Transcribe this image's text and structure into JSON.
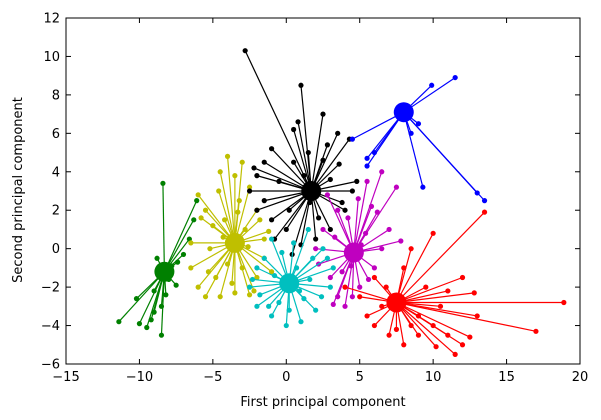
{
  "chart_data": {
    "type": "scatter",
    "title": "",
    "xlabel": "First principal component",
    "ylabel": "Second principal component",
    "xlim": [
      -15,
      20
    ],
    "ylim": [
      -6,
      12
    ],
    "xticks": [
      -15,
      -10,
      -5,
      0,
      5,
      10,
      15,
      20
    ],
    "yticks": [
      -6,
      -4,
      -2,
      0,
      2,
      4,
      6,
      8,
      10,
      12
    ],
    "grid": false,
    "legend": "none",
    "style": "cluster points joined to their centroid",
    "clusters": [
      {
        "color": "#008000",
        "centroid": [
          -8.3,
          -1.2
        ],
        "points": [
          [
            -8.4,
            3.4
          ],
          [
            -6.1,
            2.5
          ],
          [
            -6.3,
            1.5
          ],
          [
            -6.6,
            0.5
          ],
          [
            -7.0,
            -0.3
          ],
          [
            -7.4,
            -0.7
          ],
          [
            -8.0,
            -1.6
          ],
          [
            -8.2,
            -2.4
          ],
          [
            -8.5,
            -3.0
          ],
          [
            -9.0,
            -3.3
          ],
          [
            -9.2,
            -3.7
          ],
          [
            -9.5,
            -4.1
          ],
          [
            -10.0,
            -3.9
          ],
          [
            -8.5,
            -4.5
          ],
          [
            -11.4,
            -3.8
          ],
          [
            -10.2,
            -2.6
          ],
          [
            -9.0,
            -2.2
          ],
          [
            -7.5,
            -1.9
          ],
          [
            -8.8,
            -0.5
          ],
          [
            -7.8,
            -0.9
          ]
        ]
      },
      {
        "color": "#bfbf00",
        "centroid": [
          -3.5,
          0.3
        ],
        "points": [
          [
            -6.0,
            2.8
          ],
          [
            -5.5,
            2.0
          ],
          [
            -4.0,
            4.8
          ],
          [
            -4.5,
            4.0
          ],
          [
            -3.0,
            4.5
          ],
          [
            -2.5,
            3.2
          ],
          [
            -3.5,
            3.8
          ],
          [
            -5.0,
            1.2
          ],
          [
            -6.5,
            0.3
          ],
          [
            -6.5,
            -1.0
          ],
          [
            -6.0,
            -2.0
          ],
          [
            -5.5,
            -2.5
          ],
          [
            -4.5,
            -2.5
          ],
          [
            -3.5,
            -2.3
          ],
          [
            -2.5,
            -2.4
          ],
          [
            -2.0,
            -1.5
          ],
          [
            -1.5,
            -0.5
          ],
          [
            -1.5,
            0.5
          ],
          [
            -1.8,
            1.5
          ],
          [
            -2.0,
            2.0
          ],
          [
            -4.8,
            -1.5
          ],
          [
            -5.2,
            0.0
          ],
          [
            -3.0,
            -1.0
          ],
          [
            -2.8,
            1.0
          ],
          [
            -4.2,
            1.5
          ],
          [
            -4.0,
            -0.8
          ],
          [
            -3.2,
            2.5
          ],
          [
            -5.8,
            1.6
          ],
          [
            -2.2,
            -2.2
          ],
          [
            -4.6,
            3.0
          ],
          [
            -3.7,
            -1.8
          ],
          [
            -5.3,
            -1.2
          ],
          [
            -2.6,
            0.1
          ],
          [
            -4.3,
            0.6
          ],
          [
            -3.3,
            1.9
          ],
          [
            -1.2,
            0.9
          ],
          [
            -1.0,
            -1.2
          ]
        ]
      },
      {
        "color": "#000000",
        "centroid": [
          1.7,
          3.0
        ],
        "points": [
          [
            -2.8,
            10.3
          ],
          [
            1.0,
            8.5
          ],
          [
            2.5,
            7.0
          ],
          [
            0.5,
            6.2
          ],
          [
            3.5,
            6.0
          ],
          [
            4.3,
            5.7
          ],
          [
            -1.5,
            4.5
          ],
          [
            -2.0,
            3.8
          ],
          [
            -2.5,
            3.0
          ],
          [
            -2.0,
            2.0
          ],
          [
            -1.0,
            1.5
          ],
          [
            0.0,
            1.0
          ],
          [
            1.0,
            0.2
          ],
          [
            2.0,
            0.5
          ],
          [
            3.0,
            1.0
          ],
          [
            4.0,
            2.0
          ],
          [
            4.5,
            3.0
          ],
          [
            4.8,
            3.5
          ],
          [
            -0.5,
            3.5
          ],
          [
            0.5,
            4.5
          ],
          [
            1.5,
            5.0
          ],
          [
            2.5,
            4.6
          ],
          [
            3.0,
            3.6
          ],
          [
            -1.5,
            2.5
          ],
          [
            -0.8,
            0.5
          ],
          [
            2.2,
            1.6
          ],
          [
            0.2,
            2.0
          ],
          [
            1.2,
            3.8
          ],
          [
            3.6,
            4.4
          ],
          [
            -1.0,
            5.2
          ],
          [
            2.8,
            5.4
          ],
          [
            0.8,
            6.6
          ],
          [
            -2.2,
            4.2
          ],
          [
            3.8,
            2.4
          ],
          [
            0.4,
            -0.3
          ],
          [
            1.6,
            2.4
          ]
        ]
      },
      {
        "color": "#0000ff",
        "centroid": [
          8.0,
          7.1
        ],
        "points": [
          [
            11.5,
            8.9
          ],
          [
            9.9,
            8.5
          ],
          [
            9.0,
            6.5
          ],
          [
            8.5,
            6.0
          ],
          [
            5.5,
            4.7
          ],
          [
            6.0,
            5.0
          ],
          [
            5.5,
            4.3
          ],
          [
            9.3,
            3.2
          ],
          [
            13.0,
            2.9
          ],
          [
            13.5,
            2.5
          ],
          [
            4.5,
            5.7
          ]
        ]
      },
      {
        "color": "#bf00bf",
        "centroid": [
          4.6,
          -0.2
        ],
        "points": [
          [
            6.5,
            4.0
          ],
          [
            5.5,
            3.5
          ],
          [
            7.5,
            3.2
          ],
          [
            3.5,
            2.0
          ],
          [
            2.5,
            1.0
          ],
          [
            2.0,
            0.0
          ],
          [
            2.2,
            -0.8
          ],
          [
            3.0,
            -1.5
          ],
          [
            3.5,
            -2.5
          ],
          [
            4.0,
            -3.0
          ],
          [
            4.5,
            -2.5
          ],
          [
            5.0,
            -2.0
          ],
          [
            6.0,
            -1.0
          ],
          [
            6.5,
            0.0
          ],
          [
            7.0,
            1.0
          ],
          [
            5.8,
            2.2
          ],
          [
            3.3,
            0.6
          ],
          [
            4.2,
            1.6
          ],
          [
            5.4,
            0.8
          ],
          [
            3.8,
            -1.2
          ],
          [
            5.6,
            -1.6
          ],
          [
            7.8,
            0.4
          ],
          [
            2.8,
            2.8
          ],
          [
            4.9,
            2.6
          ],
          [
            3.2,
            -2.9
          ],
          [
            6.2,
            1.9
          ],
          [
            4.4,
            -0.9
          ],
          [
            5.1,
            0.2
          ]
        ]
      },
      {
        "color": "#00bfbf",
        "centroid": [
          0.2,
          -1.8
        ],
        "points": [
          [
            -1.0,
            0.5
          ],
          [
            1.5,
            1.0
          ],
          [
            -2.0,
            -1.0
          ],
          [
            -2.5,
            -2.0
          ],
          [
            -2.0,
            -3.0
          ],
          [
            -1.0,
            -3.5
          ],
          [
            0.0,
            -4.0
          ],
          [
            1.0,
            -3.8
          ],
          [
            2.0,
            -3.2
          ],
          [
            3.0,
            -2.0
          ],
          [
            3.2,
            -1.0
          ],
          [
            2.5,
            0.0
          ],
          [
            -1.5,
            -0.5
          ],
          [
            0.5,
            0.3
          ],
          [
            1.8,
            -0.5
          ],
          [
            -0.5,
            -2.8
          ],
          [
            1.2,
            -2.6
          ],
          [
            -1.8,
            -2.4
          ],
          [
            0.7,
            -1.0
          ],
          [
            -0.8,
            -1.4
          ],
          [
            2.4,
            -2.5
          ],
          [
            -1.2,
            -3.0
          ],
          [
            0.2,
            -3.2
          ],
          [
            1.6,
            -1.6
          ],
          [
            -2.3,
            -1.6
          ],
          [
            2.8,
            -0.5
          ],
          [
            -0.3,
            -0.2
          ],
          [
            0.9,
            -2.2
          ]
        ]
      },
      {
        "color": "#ff0000",
        "centroid": [
          7.5,
          -2.8
        ],
        "points": [
          [
            13.5,
            1.9
          ],
          [
            10.0,
            0.8
          ],
          [
            8.5,
            0.0
          ],
          [
            8.0,
            -1.0
          ],
          [
            6.0,
            -1.5
          ],
          [
            4.0,
            -2.0
          ],
          [
            5.0,
            -2.5
          ],
          [
            5.5,
            -3.5
          ],
          [
            6.0,
            -4.0
          ],
          [
            7.0,
            -4.5
          ],
          [
            8.0,
            -5.0
          ],
          [
            9.0,
            -4.5
          ],
          [
            10.0,
            -4.0
          ],
          [
            11.0,
            -4.5
          ],
          [
            12.0,
            -5.0
          ],
          [
            11.5,
            -5.5
          ],
          [
            12.5,
            -4.6
          ],
          [
            13.0,
            -3.5
          ],
          [
            12.0,
            -1.5
          ],
          [
            17.0,
            -4.3
          ],
          [
            18.9,
            -2.8
          ],
          [
            9.5,
            -2.0
          ],
          [
            10.5,
            -3.0
          ],
          [
            6.5,
            -3.0
          ],
          [
            9.0,
            -3.5
          ],
          [
            11.0,
            -2.2
          ],
          [
            8.5,
            -4.0
          ],
          [
            7.5,
            -4.2
          ],
          [
            6.8,
            -2.0
          ],
          [
            12.8,
            -2.3
          ],
          [
            10.2,
            -5.1
          ]
        ]
      }
    ]
  }
}
